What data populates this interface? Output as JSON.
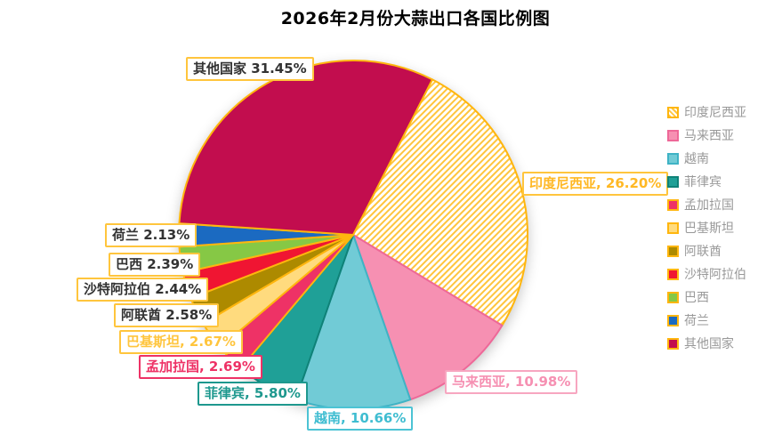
{
  "title": "2026年2月份大蒜出口各国比例图",
  "chart_data": {
    "type": "pie",
    "title": "2026年2月份大蒜出口各国比例图",
    "legend_position": "right",
    "start_angle_deg": 63,
    "clockwise": true,
    "unit": "%",
    "slices": [
      {
        "name": "印度尼西亚",
        "value": 26.2,
        "label": "印度尼西亚, 26.20%",
        "color": "#FFC53D",
        "hatched": true,
        "border_color": "#FFB60E",
        "label_text_color": "#FFB824",
        "label_border_color": "#FFC53D"
      },
      {
        "name": "马来西亚",
        "value": 10.98,
        "label": "马来西亚, 10.98%",
        "color": "#F690B2",
        "hatched": false,
        "border_color": "#EE6898",
        "label_text_color": "#F690B2",
        "label_border_color": "#F7A6C0"
      },
      {
        "name": "越南",
        "value": 10.66,
        "label": "越南, 10.66%",
        "color": "#71CBD6",
        "hatched": false,
        "border_color": "#3FB3C5",
        "label_text_color": "#3FBDD1",
        "label_border_color": "#4CC3D4"
      },
      {
        "name": "菲律宾",
        "value": 5.8,
        "label": "菲律宾, 5.80%",
        "color": "#1FA097",
        "hatched": false,
        "border_color": "#0F8278",
        "label_text_color": "#1E988E",
        "label_border_color": "#1E988E"
      },
      {
        "name": "孟加拉国",
        "value": 2.69,
        "label": "孟加拉国, 2.69%",
        "color": "#EE3266",
        "hatched": false,
        "border_color": "#FFB60E",
        "label_text_color": "#EE3266",
        "label_border_color": "#EE3266"
      },
      {
        "name": "巴基斯坦",
        "value": 2.67,
        "label": "巴基斯坦, 2.67%",
        "color": "#FFDB7E",
        "hatched": false,
        "border_color": "#FFB60E",
        "label_text_color": "#FFC53D",
        "label_border_color": "#FFC53D"
      },
      {
        "name": "阿联酋",
        "value": 2.58,
        "label": "阿联酋 2.58%",
        "color": "#AD8A00",
        "hatched": false,
        "border_color": "#FFB60E",
        "label_text_color": "#333333",
        "label_border_color": "#FFC53D"
      },
      {
        "name": "沙特阿拉伯",
        "value": 2.44,
        "label": "沙特阿拉伯 2.44%",
        "color": "#F01532",
        "hatched": false,
        "border_color": "#FFB60E",
        "label_text_color": "#333333",
        "label_border_color": "#FFC53D"
      },
      {
        "name": "巴西",
        "value": 2.39,
        "label": "巴西 2.39%",
        "color": "#86C845",
        "hatched": false,
        "border_color": "#FFB60E",
        "label_text_color": "#333333",
        "label_border_color": "#FFC53D"
      },
      {
        "name": "荷兰",
        "value": 2.13,
        "label": "荷兰 2.13%",
        "color": "#1B6AC1",
        "hatched": false,
        "border_color": "#FFB60E",
        "label_text_color": "#333333",
        "label_border_color": "#FFC53D"
      },
      {
        "name": "其他国家",
        "value": 31.45,
        "label": "其他国家 31.45%",
        "color": "#C20D4E",
        "hatched": false,
        "border_color": "#FFB60E",
        "label_text_color": "#333333",
        "label_border_color": "#FFC53D"
      }
    ],
    "colors": {
      "slice_border_gold": "#FFB60E",
      "hatch_stripe": "#FFC53D",
      "hatch_background": "#FFFFFF",
      "legend_text": "#999999",
      "title_text": "#000000",
      "dark_label_text": "#333333"
    }
  }
}
